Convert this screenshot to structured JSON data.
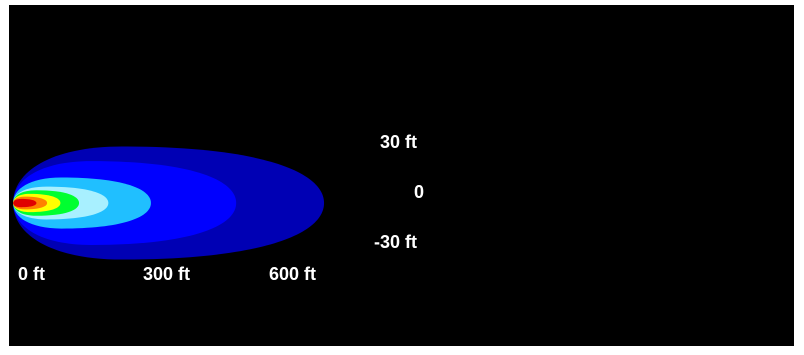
{
  "chart_data": {
    "type": "heatmap",
    "title": "",
    "xlabel": "",
    "ylabel": "",
    "x_ticks": [
      "0 ft",
      "300 ft",
      "600 ft"
    ],
    "y_ticks": [
      "30 ft",
      "0",
      "-30 ft"
    ],
    "xlim": [
      0,
      600
    ],
    "ylim": [
      -30,
      30
    ],
    "background": "#000000",
    "contours": [
      {
        "level": 1,
        "color": "#0000b4",
        "x_extent": [
          0,
          580
        ],
        "half_width": 31
      },
      {
        "level": 2,
        "color": "#0000ff",
        "x_extent": [
          0,
          415
        ],
        "half_width": 23
      },
      {
        "level": 3,
        "color": "#20bfff",
        "x_extent": [
          0,
          255
        ],
        "half_width": 14
      },
      {
        "level": 4,
        "color": "#a8f0ff",
        "x_extent": [
          0,
          175
        ],
        "half_width": 9
      },
      {
        "level": 5,
        "color": "#00ff30",
        "x_extent": [
          0,
          120
        ],
        "half_width": 7
      },
      {
        "level": 6,
        "color": "#ffff00",
        "x_extent": [
          0,
          85
        ],
        "half_width": 5
      },
      {
        "level": 7,
        "color": "#ff8000",
        "x_extent": [
          0,
          60
        ],
        "half_width": 3.5
      },
      {
        "level": 8,
        "color": "#e00000",
        "x_extent": [
          0,
          40
        ],
        "half_width": 2.3
      }
    ]
  }
}
